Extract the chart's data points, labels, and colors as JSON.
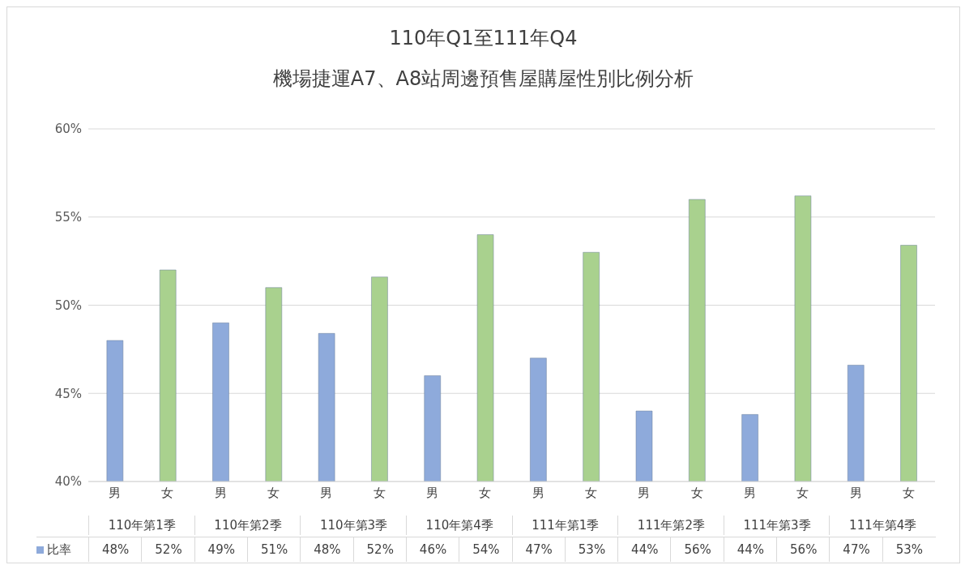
{
  "chart_data": {
    "type": "bar",
    "title": "110年Q1至111年Q4",
    "subtitle": "機場捷運A7、A8站周邊預售屋購屋性別比例分析",
    "categories": [
      "男",
      "女",
      "男",
      "女",
      "男",
      "女",
      "男",
      "女",
      "男",
      "女",
      "男",
      "女",
      "男",
      "女",
      "男",
      "女"
    ],
    "annotations": [
      "110年第1季",
      "110年第2季",
      "110年第3季",
      "110年第4季",
      "111年第1季",
      "111年第2季",
      "111年第3季",
      "111年第4季"
    ],
    "series": [
      {
        "name": "比率",
        "color": "#8eaadb",
        "colors": [
          "#8eaadb",
          "#a9d18e",
          "#8eaadb",
          "#a9d18e",
          "#8eaadb",
          "#a9d18e",
          "#8eaadb",
          "#a9d18e",
          "#8eaadb",
          "#a9d18e",
          "#8eaadb",
          "#a9d18e",
          "#8eaadb",
          "#a9d18e",
          "#8eaadb",
          "#a9d18e"
        ],
        "values": [
          48,
          52,
          49,
          51,
          48.4,
          51.6,
          46,
          54,
          47,
          53,
          44,
          56,
          43.8,
          56.2,
          46.6,
          53.4
        ],
        "value_labels": [
          "48%",
          "52%",
          "49%",
          "51%",
          "48%",
          "52%",
          "46%",
          "54%",
          "47%",
          "53%",
          "44%",
          "56%",
          "44%",
          "56%",
          "47%",
          "53%"
        ]
      }
    ],
    "ylim": [
      40,
      60
    ],
    "yticks": [
      {
        "value": 40,
        "label": "40%"
      },
      {
        "value": 45,
        "label": "45%"
      },
      {
        "value": 50,
        "label": "50%"
      },
      {
        "value": 55,
        "label": "55%"
      },
      {
        "value": 60,
        "label": "60%"
      }
    ],
    "grid": "y",
    "legend": "bottom"
  }
}
